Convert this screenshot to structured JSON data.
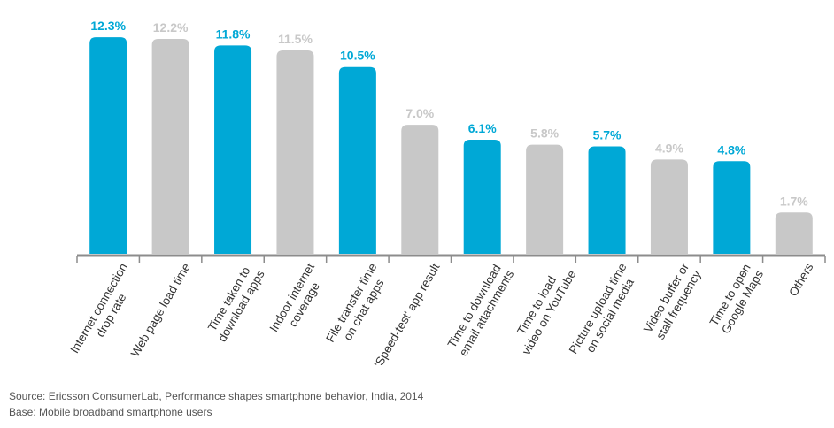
{
  "chart_data": {
    "type": "bar",
    "categories": [
      "Internet connection\ndrop rate",
      "Web page load time",
      "Time taken to\ndownload apps",
      "Indoor internet\ncoverage",
      "File transfer time\non chat apps",
      "'Speed-test' app result",
      "Time to download\nemail attachments",
      "Time to load\nvideo on YouTube",
      "Picture upload time\non social media",
      "Video buffer or\nstall frequency",
      "Time to open\nGoogle Maps",
      "Others"
    ],
    "values": [
      12.3,
      12.2,
      11.8,
      11.5,
      10.5,
      7.0,
      6.1,
      5.8,
      5.7,
      4.9,
      4.8,
      1.7
    ],
    "value_labels": [
      "12.3%",
      "12.2%",
      "11.8%",
      "11.5%",
      "10.5%",
      "7.0%",
      "6.1%",
      "5.8%",
      "5.7%",
      "4.9%",
      "4.8%",
      "1.7%"
    ],
    "colors": [
      "#00a8d6",
      "#c8c8c8",
      "#00a8d6",
      "#c8c8c8",
      "#00a8d6",
      "#c8c8c8",
      "#00a8d6",
      "#c8c8c8",
      "#00a8d6",
      "#c8c8c8",
      "#00a8d6",
      "#c8c8c8"
    ],
    "ylim": [
      -0.8,
      13
    ]
  },
  "source": "Source: Ericsson ConsumerLab, Performance shapes smartphone behavior, India, 2014",
  "base": "Base: Mobile broadband smartphone users"
}
